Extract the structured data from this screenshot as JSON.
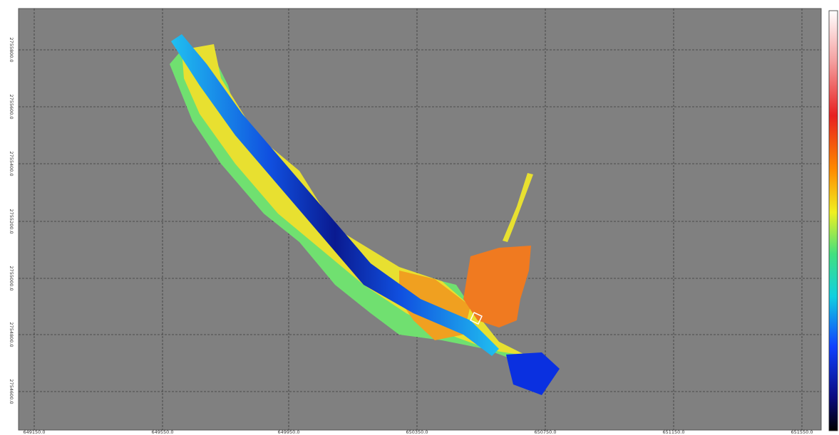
{
  "axes": {
    "x_labels": [
      "649150.0",
      "649550.0",
      "649950.0",
      "650350.0",
      "650750.0",
      "651150.0",
      "651550.0"
    ],
    "y_labels": [
      "2755800.0",
      "2755600.0",
      "2755400.0",
      "2755200.0",
      "2755000.0",
      "2754800.0",
      "2754600.0"
    ]
  }
}
